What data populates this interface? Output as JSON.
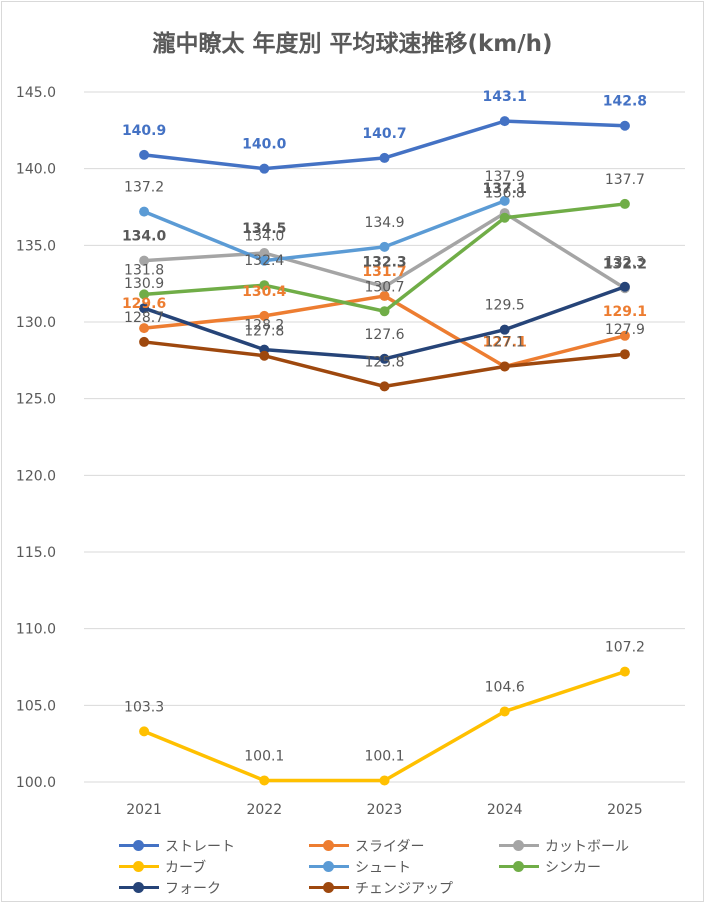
{
  "chart_data": {
    "type": "line",
    "title": "瀧中瞭太 年度別 平均球速推移(km/h)",
    "categories": [
      "2021",
      "2022",
      "2023",
      "2024",
      "2025"
    ],
    "ylim": [
      100,
      145
    ],
    "yticks": [
      "100.0",
      "105.0",
      "110.0",
      "115.0",
      "120.0",
      "125.0",
      "130.0",
      "135.0",
      "140.0",
      "145.0"
    ],
    "grid": true,
    "legend_position": "bottom",
    "series": [
      {
        "name": "ストレート",
        "color": "#4472C4",
        "values": [
          140.9,
          140.0,
          140.7,
          143.1,
          142.8
        ],
        "label_color": "#4472C4",
        "bold": true
      },
      {
        "name": "スライダー",
        "color": "#ED7D31",
        "values": [
          129.6,
          130.4,
          131.7,
          127.1,
          129.1
        ],
        "label_color": "#ED7D31",
        "bold": true
      },
      {
        "name": "カットボール",
        "color": "#A5A5A5",
        "values": [
          134.0,
          134.5,
          132.3,
          137.1,
          132.2
        ],
        "label_color": "#595959",
        "bold": true
      },
      {
        "name": "カーブ",
        "color": "#FFC000",
        "values": [
          103.3,
          100.1,
          100.1,
          104.6,
          107.2
        ],
        "label_color": "#595959",
        "bold": false
      },
      {
        "name": "シュート",
        "color": "#5B9BD5",
        "values": [
          137.2,
          134.0,
          134.9,
          137.9,
          null
        ],
        "label_color": "#595959",
        "bold": false
      },
      {
        "name": "シンカー",
        "color": "#70AD47",
        "values": [
          131.8,
          132.4,
          130.7,
          136.8,
          137.7
        ],
        "label_color": "#595959",
        "bold": false
      },
      {
        "name": "フォーク",
        "color": "#264478",
        "values": [
          130.9,
          128.2,
          127.6,
          129.5,
          132.3
        ],
        "label_color": "#595959",
        "bold": false
      },
      {
        "name": "チェンジアップ",
        "color": "#9E480E",
        "values": [
          128.7,
          127.8,
          125.8,
          127.1,
          127.9
        ],
        "label_color": "#595959",
        "bold": false
      }
    ]
  }
}
